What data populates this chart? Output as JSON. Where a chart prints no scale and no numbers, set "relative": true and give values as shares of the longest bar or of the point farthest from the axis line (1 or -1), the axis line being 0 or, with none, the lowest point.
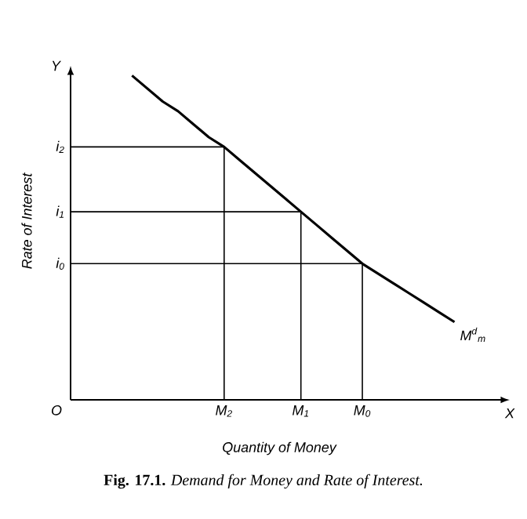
{
  "chart_data": {
    "type": "line",
    "relative": true,
    "title": "**Fig. 17.1.** *Demand for Money and Rate of Interest.*",
    "xlabel": "Quantity of Money",
    "ylabel": "Rate of Interest",
    "categories": [
      null,
      null,
      null,
      null,
      null,
      null,
      null,
      null,
      null,
      null,
      "M$_{2}$",
      null,
      null,
      null,
      null,
      "M$_{1}$",
      null,
      null,
      null,
      "M$_{0}$",
      null,
      null,
      null,
      null,
      null,
      null,
      null,
      null,
      null
    ],
    "marker": "none",
    "line_style": "solid",
    "grid": false,
    "series": [
      {
        "name": "M$^{d}$$_{m}$",
        "color": "#000000",
        "values": [
          null,
          null,
          null,
          null,
          1.0,
          0.96,
          0.92,
          0.89,
          0.85,
          0.81,
          0.78,
          0.74,
          0.7,
          0.66,
          0.62,
          0.58,
          0.54,
          0.5,
          0.46,
          0.42,
          0.39,
          0.36,
          0.33,
          0.3,
          0.27,
          0.24,
          null,
          null,
          null
        ]
      },
      {
        "color": "#000000",
        "values": [
          0.78,
          0.78,
          0.78,
          0.78,
          0.78,
          0.78,
          0.78,
          0.78,
          0.78,
          0.78,
          0.78,
          null,
          null,
          null,
          null,
          null,
          null,
          null,
          null,
          null,
          null,
          null,
          null,
          null,
          null,
          null,
          null,
          null,
          null
        ]
      },
      {
        "color": "#000000",
        "values": [
          0.58,
          0.58,
          0.58,
          0.58,
          0.58,
          0.58,
          0.58,
          0.58,
          0.58,
          0.58,
          0.58,
          0.58,
          0.58,
          0.58,
          0.58,
          0.58,
          null,
          null,
          null,
          null,
          null,
          null,
          null,
          null,
          null,
          null,
          null,
          null,
          null
        ]
      },
      {
        "color": "#000000",
        "values": [
          0.42,
          0.42,
          0.42,
          0.42,
          0.42,
          0.42,
          0.42,
          0.42,
          0.42,
          0.42,
          0.42,
          0.42,
          0.42,
          0.42,
          0.42,
          0.42,
          0.42,
          0.42,
          0.42,
          0.42,
          null,
          null,
          null,
          null,
          null,
          null,
          null,
          null,
          null
        ]
      },
      {
        "type": "bar",
        "color": "#000000",
        "values": [
          null,
          null,
          null,
          null,
          null,
          null,
          null,
          null,
          null,
          null,
          0.78,
          null,
          null,
          null,
          null,
          0.58,
          null,
          null,
          null,
          0.42,
          null,
          null,
          null,
          null,
          null,
          null,
          null,
          null,
          null
        ]
      }
    ],
    "annotations": [
      "O",
      "X",
      "Y",
      "i$_{2}$",
      "i$_{1}$",
      "i$_{0}$"
    ]
  }
}
